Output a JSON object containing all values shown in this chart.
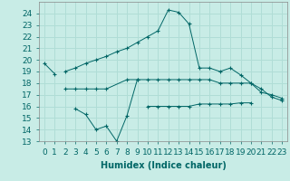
{
  "xlabel": "Humidex (Indice chaleur)",
  "bg_color": "#c8ece6",
  "grid_color": "#b0ddd6",
  "line_color": "#006666",
  "x": [
    0,
    1,
    2,
    3,
    4,
    5,
    6,
    7,
    8,
    9,
    10,
    11,
    12,
    13,
    14,
    15,
    16,
    17,
    18,
    19,
    20,
    21,
    22,
    23
  ],
  "line1": [
    19.7,
    18.8,
    null,
    null,
    null,
    null,
    null,
    null,
    null,
    null,
    null,
    null,
    null,
    null,
    null,
    null,
    null,
    null,
    null,
    null,
    null,
    null,
    null,
    null
  ],
  "line2": [
    null,
    null,
    19.0,
    19.3,
    19.7,
    20.0,
    20.3,
    20.7,
    21.0,
    21.5,
    22.0,
    22.5,
    24.3,
    24.1,
    23.1,
    19.3,
    19.3,
    19.0,
    19.3,
    18.7,
    18.0,
    17.2,
    17.0,
    16.7
  ],
  "line3": [
    null,
    null,
    17.5,
    17.5,
    17.5,
    17.5,
    17.5,
    null,
    18.3,
    18.3,
    18.3,
    18.3,
    18.3,
    18.3,
    18.3,
    18.3,
    18.3,
    18.0,
    18.0,
    18.0,
    18.0,
    17.5,
    16.8,
    16.5
  ],
  "line4": [
    null,
    null,
    null,
    15.8,
    15.3,
    14.0,
    14.3,
    13.0,
    15.2,
    18.3,
    null,
    null,
    null,
    null,
    null,
    null,
    null,
    null,
    null,
    null,
    null,
    null,
    null,
    null
  ],
  "line5": [
    null,
    null,
    null,
    null,
    null,
    null,
    null,
    null,
    null,
    null,
    16.0,
    16.0,
    16.0,
    16.0,
    16.0,
    16.2,
    16.2,
    16.2,
    16.2,
    16.3,
    16.3,
    null,
    null,
    null
  ],
  "ylim": [
    13,
    25
  ],
  "xlim": [
    -0.5,
    23.5
  ],
  "yticks": [
    13,
    14,
    15,
    16,
    17,
    18,
    19,
    20,
    21,
    22,
    23,
    24
  ],
  "xticks": [
    0,
    1,
    2,
    3,
    4,
    5,
    6,
    7,
    8,
    9,
    10,
    11,
    12,
    13,
    14,
    15,
    16,
    17,
    18,
    19,
    20,
    21,
    22,
    23
  ],
  "xtick_labels": [
    "0",
    "1",
    "2",
    "3",
    "4",
    "5",
    "6",
    "7",
    "8",
    "9",
    "10",
    "11",
    "12",
    "13",
    "14",
    "15",
    "16",
    "17",
    "18",
    "19",
    "20",
    "21",
    "22",
    "23"
  ],
  "fontsize": 6.5,
  "xlabel_fontsize": 7
}
